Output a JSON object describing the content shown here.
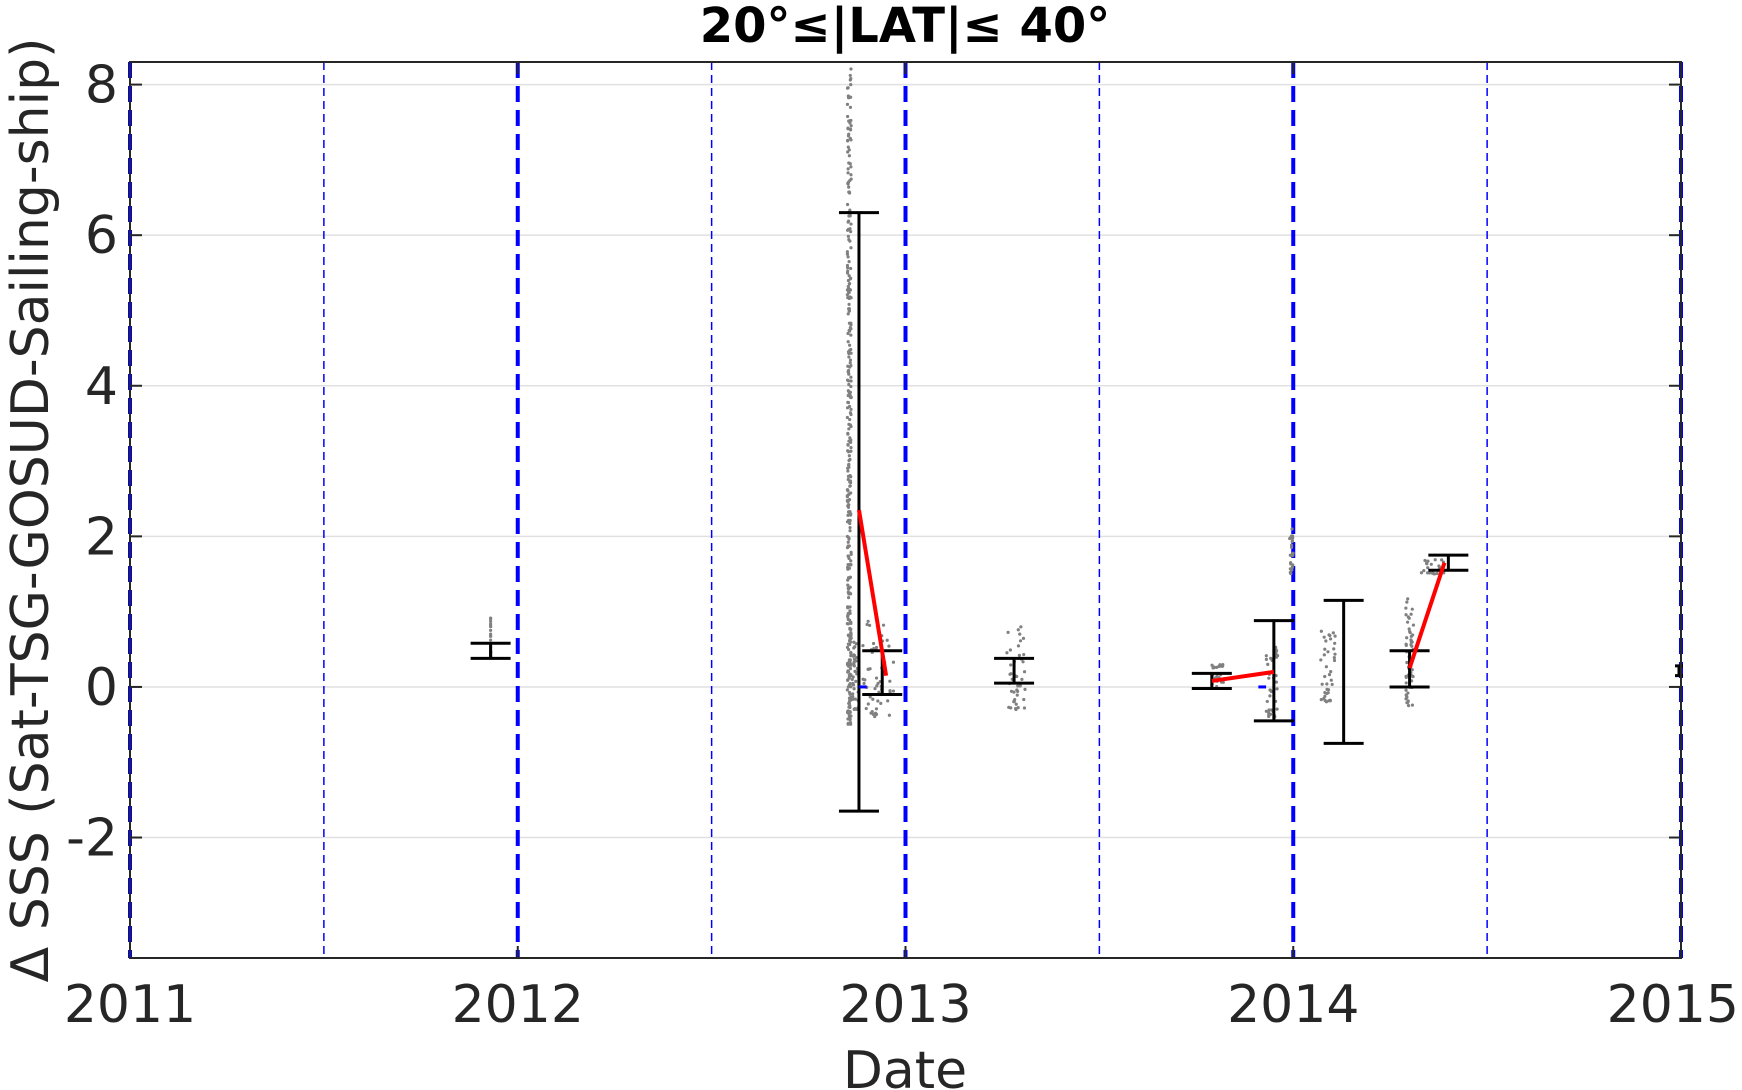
{
  "chart_data": {
    "type": "scatter",
    "title": "20°≤|LAT|≤ 40°",
    "xlabel": "Date",
    "ylabel": "Δ SSS (Sat-TSG-GOSUD-Sailing-ship)",
    "xlim": [
      2011,
      2015
    ],
    "ylim": [
      -3.6,
      8.3
    ],
    "x_ticks": [
      2011,
      2012,
      2013,
      2014,
      2015
    ],
    "x_tick_labels": [
      "2011",
      "2012",
      "2013",
      "2014",
      "2015"
    ],
    "y_ticks": [
      -2,
      0,
      2,
      4,
      6,
      8
    ],
    "y_tick_labels": [
      "-2",
      "0",
      "2",
      "4",
      "6",
      "8"
    ],
    "grid": "horizontal",
    "legend": "none",
    "colors": {
      "points": "#808080",
      "error_bars": "#000000",
      "trend": "#ff0000",
      "year_lines": "#0000ff",
      "grid": "#e0e0e0"
    },
    "reference_lines": {
      "year_boundaries": [
        2011,
        2012,
        2013,
        2014,
        2015
      ],
      "half_years": [
        2011.5,
        2012.5,
        2013.5,
        2014.5
      ]
    },
    "error_bars": [
      {
        "x": 2011.93,
        "low": 0.38,
        "high": 0.58
      },
      {
        "x": 2012.88,
        "low": -1.65,
        "high": 6.3
      },
      {
        "x": 2012.94,
        "low": -0.1,
        "high": 0.48
      },
      {
        "x": 2013.28,
        "low": 0.05,
        "high": 0.38
      },
      {
        "x": 2013.79,
        "low": -0.02,
        "high": 0.18
      },
      {
        "x": 2013.95,
        "low": -0.45,
        "high": 0.88
      },
      {
        "x": 2014.13,
        "low": -0.75,
        "high": 1.15
      },
      {
        "x": 2014.3,
        "low": 0.0,
        "high": 0.48
      },
      {
        "x": 2014.4,
        "low": 1.55,
        "high": 1.75
      },
      {
        "x": 2015.0,
        "low": 0.15,
        "high": 0.28
      }
    ],
    "trend_segments": [
      {
        "x": [
          2012.88,
          2012.95
        ],
        "y": [
          2.35,
          0.15
        ]
      },
      {
        "x": [
          2013.79,
          2013.95
        ],
        "y": [
          0.08,
          0.2
        ]
      },
      {
        "x": [
          2014.3,
          2014.39
        ],
        "y": [
          0.25,
          1.65
        ]
      }
    ],
    "zero_markers": [
      {
        "x": [
          2012.88,
          2012.9
        ],
        "y": 0.0
      },
      {
        "x": [
          2013.91,
          2013.93
        ],
        "y": 0.0
      }
    ],
    "point_clusters": [
      {
        "x_from": 2011.93,
        "x_to": 2011.93,
        "y_from": 0.4,
        "y_to": 0.95
      },
      {
        "x_from": 2012.85,
        "x_to": 2012.86,
        "y_from": -0.5,
        "y_to": 8.3
      },
      {
        "x_from": 2012.86,
        "x_to": 2012.88,
        "y_from": -0.3,
        "y_to": 0.6
      },
      {
        "x_from": 2012.89,
        "x_to": 2012.97,
        "y_from": -0.4,
        "y_to": 0.9
      },
      {
        "x_from": 2013.26,
        "x_to": 2013.31,
        "y_from": -0.3,
        "y_to": 0.8
      },
      {
        "x_from": 2013.79,
        "x_to": 2013.82,
        "y_from": 0.0,
        "y_to": 0.3
      },
      {
        "x_from": 2013.93,
        "x_to": 2013.96,
        "y_from": -0.4,
        "y_to": 0.55
      },
      {
        "x_from": 2013.99,
        "x_to": 2014.0,
        "y_from": 1.5,
        "y_to": 2.1
      },
      {
        "x_from": 2014.07,
        "x_to": 2014.11,
        "y_from": -0.2,
        "y_to": 0.75
      },
      {
        "x_from": 2014.29,
        "x_to": 2014.31,
        "y_from": -0.25,
        "y_to": 1.2
      },
      {
        "x_from": 2014.33,
        "x_to": 2014.39,
        "y_from": 1.5,
        "y_to": 1.7
      }
    ]
  }
}
